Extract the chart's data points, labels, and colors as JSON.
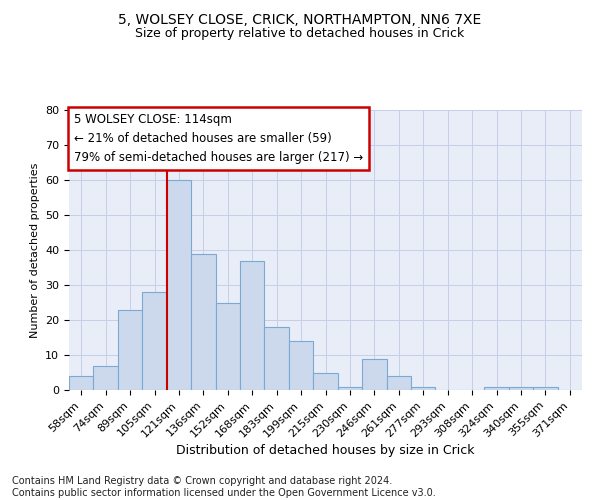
{
  "title1": "5, WOLSEY CLOSE, CRICK, NORTHAMPTON, NN6 7XE",
  "title2": "Size of property relative to detached houses in Crick",
  "xlabel": "Distribution of detached houses by size in Crick",
  "ylabel": "Number of detached properties",
  "categories": [
    "58sqm",
    "74sqm",
    "89sqm",
    "105sqm",
    "121sqm",
    "136sqm",
    "152sqm",
    "168sqm",
    "183sqm",
    "199sqm",
    "215sqm",
    "230sqm",
    "246sqm",
    "261sqm",
    "277sqm",
    "293sqm",
    "308sqm",
    "324sqm",
    "340sqm",
    "355sqm",
    "371sqm"
  ],
  "values": [
    4,
    7,
    23,
    28,
    60,
    39,
    25,
    37,
    18,
    14,
    5,
    1,
    9,
    4,
    1,
    0,
    0,
    1,
    1,
    1,
    0
  ],
  "bar_color": "#ccd9ed",
  "bar_edge_color": "#7aaad4",
  "vline_color": "#cc0000",
  "vline_x_index": 4,
  "annotation_text": "5 WOLSEY CLOSE: 114sqm\n← 21% of detached houses are smaller (59)\n79% of semi-detached houses are larger (217) →",
  "annotation_box_color": "#cc0000",
  "ylim": [
    0,
    80
  ],
  "yticks": [
    0,
    10,
    20,
    30,
    40,
    50,
    60,
    70,
    80
  ],
  "grid_color": "#c5cfe8",
  "background_color": "#e8edf8",
  "footer_text": "Contains HM Land Registry data © Crown copyright and database right 2024.\nContains public sector information licensed under the Open Government Licence v3.0.",
  "title1_fontsize": 10,
  "title2_fontsize": 9,
  "xlabel_fontsize": 9,
  "ylabel_fontsize": 8,
  "annotation_fontsize": 8.5,
  "tick_fontsize": 8,
  "footer_fontsize": 7
}
